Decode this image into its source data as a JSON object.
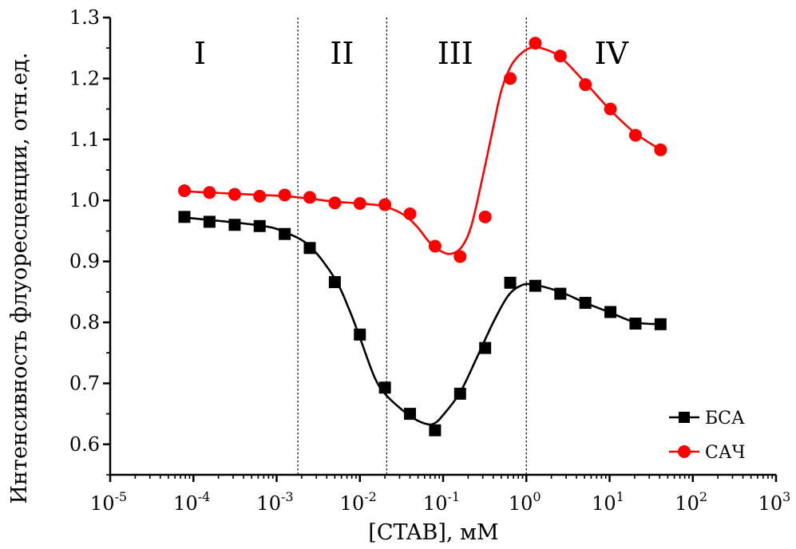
{
  "chart_data": {
    "type": "line",
    "xlabel": "[CTAB], мМ",
    "ylabel": "Интенсивность флуоресценции, отн.ед.",
    "xscale": "log",
    "xlim": [
      1e-05,
      1000
    ],
    "ylim": [
      0.55,
      1.3
    ],
    "x_ticks": [
      {
        "value": 1e-05,
        "base": "10",
        "exp": "-5"
      },
      {
        "value": 0.0001,
        "base": "10",
        "exp": "-4"
      },
      {
        "value": 0.001,
        "base": "10",
        "exp": "-3"
      },
      {
        "value": 0.01,
        "base": "10",
        "exp": "-2"
      },
      {
        "value": 0.1,
        "base": "10",
        "exp": "-1"
      },
      {
        "value": 1,
        "base": "10",
        "exp": "0"
      },
      {
        "value": 10,
        "base": "10",
        "exp": "1"
      },
      {
        "value": 100,
        "base": "10",
        "exp": "2"
      },
      {
        "value": 1000,
        "base": "10",
        "exp": "3"
      }
    ],
    "y_ticks": [
      "0.6",
      "0.7",
      "0.8",
      "0.9",
      "1.0",
      "1.1",
      "1.2",
      "1.3"
    ],
    "grid": false,
    "legend_position": "bottom-right",
    "region_dividers": [
      0.0018,
      0.021,
      1.0
    ],
    "regions": [
      {
        "label": "I",
        "x": 0.00012
      },
      {
        "label": "II",
        "x": 0.0061
      },
      {
        "label": "III",
        "x": 0.14
      },
      {
        "label": "IV",
        "x": 10.5
      }
    ],
    "series": [
      {
        "name": "БСА",
        "color": "#000000",
        "marker": "square",
        "x": [
          7.8e-05,
          0.000156,
          0.000313,
          0.000625,
          0.00125,
          0.0025,
          0.005,
          0.01,
          0.02,
          0.04,
          0.08,
          0.16,
          0.32,
          0.64,
          1.28,
          2.56,
          5.12,
          10.24,
          20.48,
          40.96
        ],
        "y": [
          0.973,
          0.965,
          0.96,
          0.958,
          0.945,
          0.922,
          0.866,
          0.78,
          0.693,
          0.65,
          0.623,
          0.683,
          0.758,
          0.865,
          0.86,
          0.847,
          0.832,
          0.817,
          0.798,
          0.797
        ],
        "curve_x": [
          7.8e-05,
          0.000625,
          0.00125,
          0.0025,
          0.005,
          0.0075,
          0.01,
          0.015,
          0.02,
          0.03,
          0.045,
          0.065,
          0.08,
          0.1,
          0.16,
          0.25,
          0.4,
          0.6,
          0.85,
          1.2,
          2.56,
          5.12,
          10.24,
          20.48,
          40.96
        ],
        "curve_y": [
          0.972,
          0.959,
          0.948,
          0.925,
          0.872,
          0.82,
          0.775,
          0.71,
          0.683,
          0.66,
          0.642,
          0.633,
          0.635,
          0.648,
          0.685,
          0.74,
          0.8,
          0.843,
          0.86,
          0.862,
          0.85,
          0.832,
          0.816,
          0.8,
          0.797
        ]
      },
      {
        "name": "САЧ",
        "color": "#ff0000",
        "marker": "circle",
        "x": [
          7.8e-05,
          0.000156,
          0.000313,
          0.000625,
          0.00125,
          0.0025,
          0.005,
          0.01,
          0.02,
          0.04,
          0.08,
          0.16,
          0.32,
          0.64,
          1.28,
          2.56,
          5.12,
          10.24,
          20.48,
          40.96
        ],
        "y": [
          1.016,
          1.013,
          1.01,
          1.007,
          1.009,
          1.005,
          0.996,
          0.995,
          0.993,
          0.978,
          0.925,
          0.908,
          0.973,
          1.2,
          1.258,
          1.237,
          1.19,
          1.15,
          1.107,
          1.083
        ],
        "curve_x": [
          7.8e-05,
          0.000625,
          0.00125,
          0.0025,
          0.005,
          0.01,
          0.02,
          0.035,
          0.05,
          0.07,
          0.1,
          0.13,
          0.17,
          0.22,
          0.3,
          0.4,
          0.5,
          0.65,
          0.85,
          1.1,
          1.5,
          2.56,
          5.12,
          10.24,
          20.48,
          40.96
        ],
        "curve_y": [
          1.015,
          1.009,
          1.007,
          1.003,
          0.998,
          0.995,
          0.99,
          0.975,
          0.955,
          0.93,
          0.915,
          0.913,
          0.925,
          0.96,
          1.04,
          1.12,
          1.18,
          1.22,
          1.24,
          1.25,
          1.25,
          1.235,
          1.193,
          1.148,
          1.11,
          1.083
        ]
      }
    ]
  }
}
